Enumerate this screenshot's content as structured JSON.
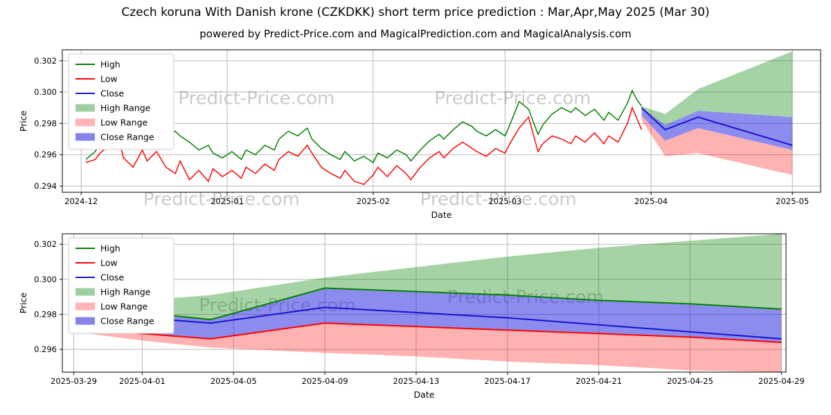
{
  "title": "Czech koruna With Danish krone (CZKDKK) short term price prediction : Mar,Apr,May 2025 (Mar 30)",
  "subtitle": "powered by Predict-Price.com and MagicalPrediction.com and MagicalAnalysis.com",
  "watermark": "Predict-Price.com",
  "colors": {
    "high": "#008000",
    "low": "#ff0000",
    "close": "#1414cc",
    "high_range_fill": "#008000",
    "low_range_fill": "#ff0000",
    "close_range_fill": "#1a1ae0"
  },
  "chart_data": [
    {
      "type": "line",
      "id": "history-and-forecast",
      "xlabel": "Date",
      "ylabel": "Price",
      "xlim": [
        -4,
        157
      ],
      "ylim": [
        0.2936,
        0.3027
      ],
      "xticks": [
        {
          "v": 0,
          "label": "2024-12"
        },
        {
          "v": 31,
          "label": "2025-01"
        },
        {
          "v": 62,
          "label": "2025-02"
        },
        {
          "v": 90,
          "label": "2025-03"
        },
        {
          "v": 121,
          "label": "2025-04"
        },
        {
          "v": 151,
          "label": "2025-05"
        }
      ],
      "yticks": [
        {
          "v": 0.294,
          "label": "0.294"
        },
        {
          "v": 0.296,
          "label": "0.296"
        },
        {
          "v": 0.298,
          "label": "0.298"
        },
        {
          "v": 0.3,
          "label": "0.300"
        },
        {
          "v": 0.302,
          "label": "0.302"
        }
      ],
      "legend": [
        {
          "label": "High",
          "color": "#008000",
          "kind": "line"
        },
        {
          "label": "Low",
          "color": "#ff0000",
          "kind": "line"
        },
        {
          "label": "Close",
          "color": "#1414cc",
          "kind": "line"
        },
        {
          "label": "High Range",
          "color": "#9fce9f",
          "kind": "patch"
        },
        {
          "label": "Low Range",
          "color": "#ffb3b3",
          "kind": "patch"
        },
        {
          "label": "Close Range",
          "color": "#8585e8",
          "kind": "patch"
        }
      ],
      "watermarks": [
        {
          "fx": 0.256,
          "fy": 0.38
        },
        {
          "fx": 0.594,
          "fy": 0.38
        },
        {
          "fx": 0.21,
          "fy": 1.09
        },
        {
          "fx": 0.575,
          "fy": 1.09
        }
      ],
      "bands": [
        {
          "name": "High Range",
          "color": "#008000",
          "opacity": 0.35,
          "x": [
            119,
            124,
            131,
            151
          ],
          "top": [
            0.2991,
            0.2986,
            0.3002,
            0.3026
          ],
          "bottom": [
            0.299,
            0.2979,
            0.2988,
            0.2984
          ]
        },
        {
          "name": "Low Range",
          "color": "#ff0000",
          "opacity": 0.3,
          "x": [
            119,
            124,
            131,
            151
          ],
          "top": [
            0.2985,
            0.2969,
            0.2977,
            0.2963
          ],
          "bottom": [
            0.2982,
            0.2959,
            0.2961,
            0.2947
          ]
        },
        {
          "name": "Close Range",
          "color": "#1a1ae0",
          "opacity": 0.5,
          "x": [
            119,
            124,
            131,
            151
          ],
          "top": [
            0.299,
            0.2979,
            0.2988,
            0.2984
          ],
          "bottom": [
            0.2985,
            0.2969,
            0.2977,
            0.2963
          ]
        }
      ],
      "series": [
        {
          "name": "High",
          "color": "#008000",
          "width": 1.5,
          "x": [
            1,
            3,
            4,
            6,
            8,
            9,
            11,
            13,
            14,
            16,
            18,
            20,
            21,
            23,
            25,
            27,
            28,
            30,
            32,
            34,
            35,
            37,
            39,
            41,
            42,
            44,
            46,
            48,
            49,
            51,
            53,
            55,
            56,
            58,
            60,
            62,
            63,
            65,
            67,
            69,
            70,
            72,
            74,
            76,
            77,
            79,
            81,
            83,
            84,
            86,
            88,
            90,
            91,
            93,
            95,
            97,
            98,
            100,
            102,
            104,
            105,
            107,
            109,
            111,
            112,
            114,
            116,
            117,
            118,
            119
          ],
          "y": [
            0.2957,
            0.2962,
            0.2968,
            0.2975,
            0.2981,
            0.2972,
            0.2968,
            0.2977,
            0.2973,
            0.2978,
            0.297,
            0.2975,
            0.2972,
            0.2968,
            0.2963,
            0.2966,
            0.2961,
            0.2958,
            0.2962,
            0.2957,
            0.2963,
            0.296,
            0.2966,
            0.2963,
            0.297,
            0.2975,
            0.2972,
            0.2977,
            0.297,
            0.2964,
            0.296,
            0.2957,
            0.2962,
            0.2956,
            0.2959,
            0.2955,
            0.2961,
            0.2958,
            0.2963,
            0.296,
            0.2956,
            0.2963,
            0.2969,
            0.2973,
            0.297,
            0.2976,
            0.2981,
            0.2978,
            0.2975,
            0.2972,
            0.2976,
            0.2972,
            0.2979,
            0.2994,
            0.2989,
            0.2973,
            0.2979,
            0.2986,
            0.299,
            0.2987,
            0.299,
            0.2985,
            0.2989,
            0.2982,
            0.2987,
            0.2982,
            0.2993,
            0.3001,
            0.2995,
            0.2991
          ]
        },
        {
          "name": "Low",
          "color": "#ff0000",
          "width": 1.5,
          "x": [
            1,
            3,
            4,
            6,
            8,
            9,
            11,
            13,
            14,
            16,
            18,
            20,
            21,
            23,
            25,
            27,
            28,
            30,
            32,
            34,
            35,
            37,
            39,
            41,
            42,
            44,
            46,
            48,
            49,
            51,
            53,
            55,
            56,
            58,
            60,
            62,
            63,
            65,
            67,
            69,
            70,
            72,
            74,
            76,
            77,
            79,
            81,
            83,
            84,
            86,
            88,
            90,
            91,
            93,
            95,
            97,
            98,
            100,
            102,
            104,
            105,
            107,
            109,
            111,
            112,
            114,
            116,
            117,
            118,
            119
          ],
          "y": [
            0.2955,
            0.2957,
            0.2961,
            0.2966,
            0.2969,
            0.2958,
            0.2952,
            0.2963,
            0.2956,
            0.2962,
            0.2952,
            0.2948,
            0.2956,
            0.2944,
            0.295,
            0.2943,
            0.2951,
            0.2946,
            0.295,
            0.2945,
            0.2952,
            0.2948,
            0.2954,
            0.295,
            0.2957,
            0.2962,
            0.2959,
            0.2966,
            0.2961,
            0.2952,
            0.2948,
            0.2945,
            0.295,
            0.2943,
            0.2941,
            0.2947,
            0.2952,
            0.2946,
            0.2953,
            0.2948,
            0.2944,
            0.2952,
            0.2958,
            0.2962,
            0.2958,
            0.2964,
            0.2968,
            0.2964,
            0.2962,
            0.2959,
            0.2964,
            0.2961,
            0.2967,
            0.2977,
            0.2984,
            0.2962,
            0.2967,
            0.2972,
            0.297,
            0.2967,
            0.2972,
            0.2968,
            0.2974,
            0.2967,
            0.2972,
            0.2968,
            0.298,
            0.299,
            0.2983,
            0.2976
          ]
        },
        {
          "name": "Close",
          "color": "#1414cc",
          "width": 2,
          "x": [
            119,
            124,
            131,
            151
          ],
          "y": [
            0.299,
            0.2976,
            0.2984,
            0.2966
          ]
        }
      ]
    },
    {
      "type": "line",
      "id": "forecast-detail",
      "xlabel": "Date",
      "ylabel": "Price",
      "xlim": [
        -0.5,
        31.2
      ],
      "ylim": [
        0.2947,
        0.3026
      ],
      "xticks": [
        {
          "v": 0,
          "label": "2025-03-29"
        },
        {
          "v": 3,
          "label": "2025-04-01"
        },
        {
          "v": 7,
          "label": "2025-04-05"
        },
        {
          "v": 11,
          "label": "2025-04-09"
        },
        {
          "v": 15,
          "label": "2025-04-13"
        },
        {
          "v": 19,
          "label": "2025-04-17"
        },
        {
          "v": 23,
          "label": "2025-04-21"
        },
        {
          "v": 27,
          "label": "2025-04-25"
        },
        {
          "v": 31,
          "label": "2025-04-29"
        }
      ],
      "yticks": [
        {
          "v": 0.296,
          "label": "0.296"
        },
        {
          "v": 0.298,
          "label": "0.298"
        },
        {
          "v": 0.3,
          "label": "0.300"
        },
        {
          "v": 0.302,
          "label": "0.302"
        }
      ],
      "legend": [
        {
          "label": "High",
          "color": "#008000",
          "kind": "line"
        },
        {
          "label": "Low",
          "color": "#ff0000",
          "kind": "line"
        },
        {
          "label": "Close",
          "color": "#1414cc",
          "kind": "line"
        },
        {
          "label": "High Range",
          "color": "#9fce9f",
          "kind": "patch"
        },
        {
          "label": "Low Range",
          "color": "#ffb3b3",
          "kind": "patch"
        },
        {
          "label": "Close Range",
          "color": "#8585e8",
          "kind": "patch"
        }
      ],
      "watermarks": [
        {
          "fx": 0.297,
          "fy": 0.56
        },
        {
          "fx": 0.64,
          "fy": 0.5
        }
      ],
      "bands": [
        {
          "name": "High Range",
          "color": "#008000",
          "opacity": 0.35,
          "x": [
            0,
            3,
            6,
            11,
            15,
            19,
            23,
            27,
            31
          ],
          "top": [
            0.2989,
            0.2988,
            0.2991,
            0.3001,
            0.3007,
            0.3013,
            0.3018,
            0.3022,
            0.3026
          ],
          "bottom": [
            0.2988,
            0.2981,
            0.2977,
            0.2995,
            0.2993,
            0.2991,
            0.2988,
            0.2986,
            0.2983
          ]
        },
        {
          "name": "Low Range",
          "color": "#ff0000",
          "opacity": 0.3,
          "x": [
            0,
            3,
            6,
            11,
            15,
            19,
            23,
            27,
            31
          ],
          "top": [
            0.2972,
            0.2969,
            0.2966,
            0.2975,
            0.2973,
            0.2971,
            0.2969,
            0.2967,
            0.2964
          ],
          "bottom": [
            0.297,
            0.2965,
            0.2961,
            0.2958,
            0.2956,
            0.2953,
            0.2951,
            0.2948,
            0.2947
          ]
        },
        {
          "name": "Close Range",
          "color": "#1a1ae0",
          "opacity": 0.5,
          "x": [
            0,
            3,
            6,
            11,
            15,
            19,
            23,
            27,
            31
          ],
          "top": [
            0.2988,
            0.2981,
            0.2977,
            0.2995,
            0.2993,
            0.2991,
            0.2988,
            0.2986,
            0.2983
          ],
          "bottom": [
            0.2972,
            0.2969,
            0.2966,
            0.2975,
            0.2973,
            0.2971,
            0.2969,
            0.2967,
            0.2964
          ]
        }
      ],
      "series": [
        {
          "name": "High",
          "color": "#008000",
          "width": 2,
          "x": [
            0,
            3,
            6,
            11,
            15,
            19,
            23,
            27,
            31
          ],
          "y": [
            0.2988,
            0.2981,
            0.2977,
            0.2995,
            0.2993,
            0.2991,
            0.2988,
            0.2986,
            0.2983
          ]
        },
        {
          "name": "Low",
          "color": "#ff0000",
          "width": 2,
          "x": [
            0,
            3,
            6,
            11,
            15,
            19,
            23,
            27,
            31
          ],
          "y": [
            0.2972,
            0.2969,
            0.2966,
            0.2975,
            0.2973,
            0.2971,
            0.2969,
            0.2967,
            0.2964
          ]
        },
        {
          "name": "Close",
          "color": "#1414cc",
          "width": 2,
          "x": [
            0,
            3,
            6,
            11,
            15,
            19,
            23,
            27,
            31
          ],
          "y": [
            0.2982,
            0.2978,
            0.2975,
            0.2984,
            0.2981,
            0.2978,
            0.2974,
            0.297,
            0.2966
          ]
        }
      ]
    }
  ]
}
